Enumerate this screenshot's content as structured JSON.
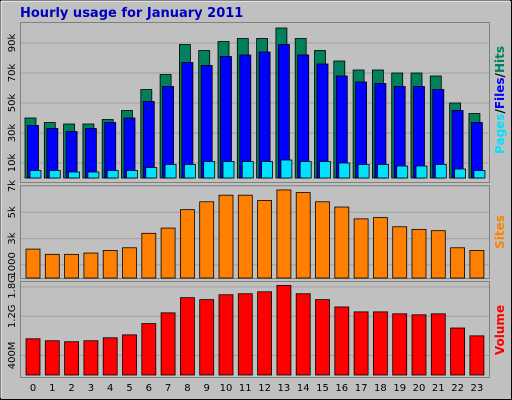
{
  "chart_data": [
    {
      "type": "bar",
      "title": "Hourly usage for January 2011",
      "legend_separator": "/",
      "series": [
        {
          "name": "Pages",
          "color": "#00e0ff",
          "values": [
            5000,
            5000,
            4000,
            4000,
            5000,
            5000,
            7000,
            9000,
            9000,
            11000,
            11000,
            11000,
            11000,
            12000,
            11000,
            11000,
            10000,
            9000,
            9000,
            8000,
            8000,
            9000,
            6000,
            5000
          ]
        },
        {
          "name": "Files",
          "color": "#0000ff",
          "values": [
            35000,
            33000,
            31000,
            33000,
            37000,
            40000,
            51000,
            61000,
            77000,
            75000,
            81000,
            82000,
            84000,
            89000,
            82000,
            76000,
            68000,
            64000,
            63000,
            61000,
            61000,
            59000,
            45000,
            37000
          ]
        },
        {
          "name": "Hits",
          "color": "#00805c",
          "values": [
            40000,
            37000,
            36000,
            36000,
            39000,
            45000,
            59000,
            69000,
            89000,
            85000,
            91000,
            93000,
            93000,
            100000,
            93000,
            85000,
            78000,
            72000,
            72000,
            70000,
            70000,
            68000,
            50000,
            43000
          ]
        }
      ],
      "ylim": [
        0,
        100000
      ],
      "yticks": [
        {
          "value": 10000,
          "label": "10k"
        },
        {
          "value": 30000,
          "label": "30k"
        },
        {
          "value": 50000,
          "label": "50k"
        },
        {
          "value": 70000,
          "label": "70k"
        },
        {
          "value": 90000,
          "label": "90k"
        }
      ],
      "grid": true
    },
    {
      "type": "bar",
      "series": [
        {
          "name": "Sites",
          "color": "#ff8000",
          "values": [
            2200,
            1800,
            1800,
            1900,
            2100,
            2300,
            3400,
            3800,
            5200,
            5800,
            6300,
            6300,
            5900,
            6700,
            6500,
            5800,
            5400,
            4500,
            4600,
            3900,
            3700,
            3600,
            2300,
            2100
          ]
        }
      ],
      "ylim": [
        0,
        7000
      ],
      "yticks": [
        1000,
        {
          "value": 3000,
          "label": "3k"
        },
        {
          "value": 5000,
          "label": "5k"
        },
        {
          "value": 7000,
          "label": "7k"
        }
      ],
      "grid": true
    },
    {
      "type": "bar",
      "categories": [
        "0",
        "1",
        "2",
        "3",
        "4",
        "5",
        "6",
        "7",
        "8",
        "9",
        "10",
        "11",
        "12",
        "13",
        "14",
        "15",
        "16",
        "17",
        "18",
        "19",
        "20",
        "21",
        "22",
        "23"
      ],
      "series": [
        {
          "name": "Volume",
          "color": "#ff0000",
          "values": [
            740,
            700,
            680,
            700,
            760,
            820,
            1050,
            1270,
            1580,
            1540,
            1640,
            1660,
            1700,
            1830,
            1660,
            1540,
            1390,
            1290,
            1290,
            1250,
            1230,
            1250,
            960,
            800
          ]
        }
      ],
      "ylim": [
        0,
        1900
      ],
      "yticks": [
        {
          "value": 400,
          "label": "400M"
        },
        {
          "value": 1200,
          "label": "1.2G"
        },
        {
          "value": 1800,
          "label": "1.8G"
        }
      ],
      "grid": true
    }
  ]
}
